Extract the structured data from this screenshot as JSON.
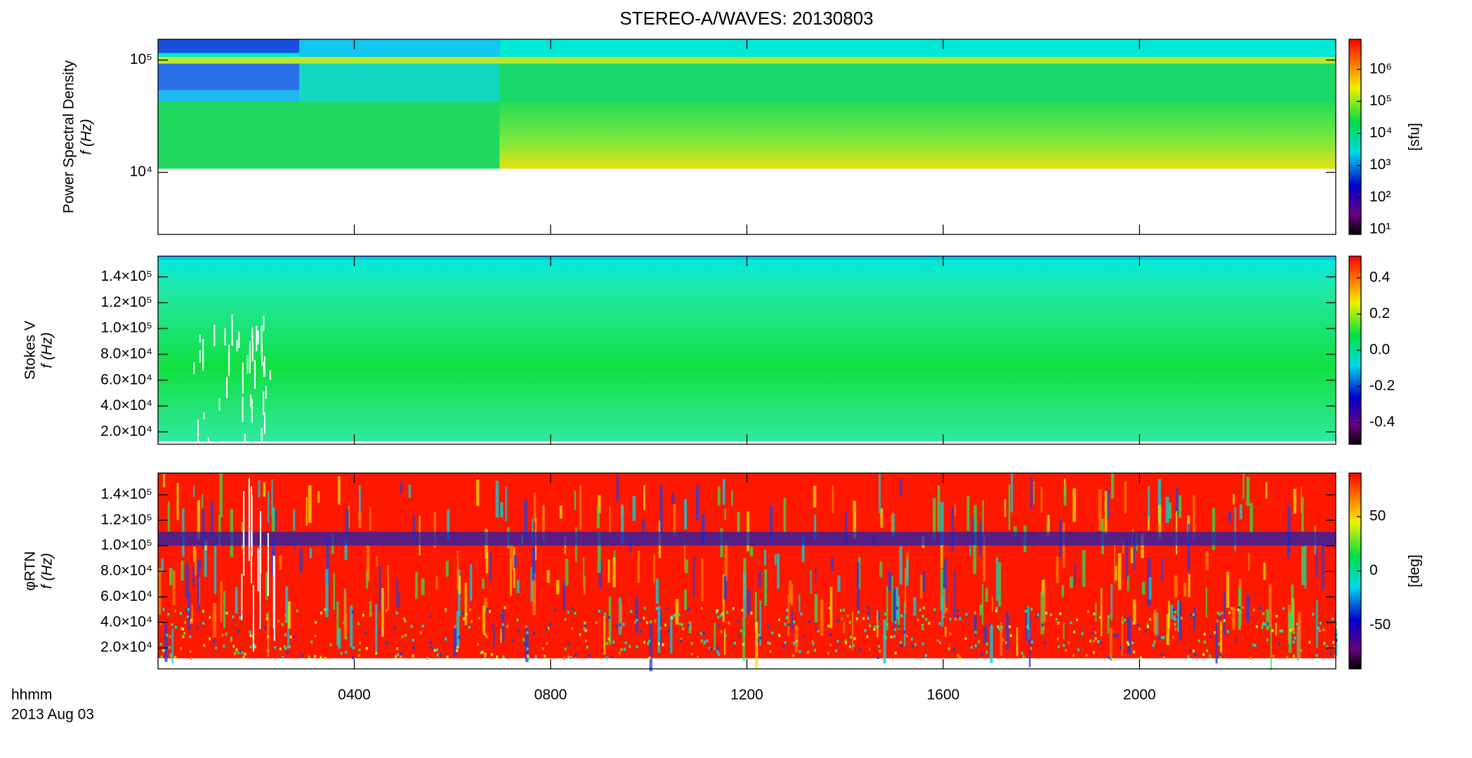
{
  "chart_data": [
    {
      "type": "spectrogram",
      "title": "STEREO-A/WAVES: 20130803",
      "ylabel": [
        "Power Spectral Density",
        "f (Hz)"
      ],
      "ylog": true,
      "ylim": [
        2800,
        153000
      ],
      "yticks": [
        {
          "value": 10000,
          "label": "10⁴"
        },
        {
          "value": 100000,
          "label": "10⁵"
        }
      ],
      "xlim": [
        0,
        24
      ],
      "xticks": [
        {
          "value": 4,
          "label": "0400"
        },
        {
          "value": 8,
          "label": "0800"
        },
        {
          "value": 12,
          "label": "1200"
        },
        {
          "value": 16,
          "label": "1600"
        },
        {
          "value": 20,
          "label": "2000"
        }
      ],
      "colorbar": {
        "log": true,
        "clim": [
          7,
          8700000
        ],
        "label": "[sfu]",
        "ticks": [
          {
            "value": 10,
            "label": "10¹"
          },
          {
            "value": 100,
            "label": "10²"
          },
          {
            "value": 1000,
            "label": "10³"
          },
          {
            "value": 10000,
            "label": "10⁴"
          },
          {
            "value": 100000,
            "label": "10⁵"
          },
          {
            "value": 1000000,
            "label": "10⁶"
          }
        ]
      }
    },
    {
      "type": "spectrogram",
      "ylabel": [
        "Stokes V",
        "f (Hz)"
      ],
      "ylog": false,
      "ylim": [
        10400,
        156000
      ],
      "yticks": [
        {
          "value": 20000,
          "label": "2.0×10⁴"
        },
        {
          "value": 40000,
          "label": "4.0×10⁴"
        },
        {
          "value": 60000,
          "label": "6.0×10⁴"
        },
        {
          "value": 80000,
          "label": "8.0×10⁴"
        },
        {
          "value": 100000,
          "label": "1.0×10⁵"
        },
        {
          "value": 120000,
          "label": "1.2×10⁵"
        },
        {
          "value": 140000,
          "label": "1.4×10⁵"
        }
      ],
      "xlim": [
        0,
        24
      ],
      "xticks": [
        {
          "value": 4,
          "label": "0400"
        },
        {
          "value": 8,
          "label": "0800"
        },
        {
          "value": 12,
          "label": "1200"
        },
        {
          "value": 16,
          "label": "1600"
        },
        {
          "value": 20,
          "label": "2000"
        }
      ],
      "colorbar": {
        "log": false,
        "clim": [
          -0.52,
          0.52
        ],
        "ticks": [
          {
            "value": -0.4,
            "label": "-0.4"
          },
          {
            "value": -0.2,
            "label": "-0.2"
          },
          {
            "value": 0,
            "label": "0.0"
          },
          {
            "value": 0.2,
            "label": "0.2"
          },
          {
            "value": 0.4,
            "label": "0.4"
          }
        ]
      }
    },
    {
      "type": "spectrogram",
      "ylabel": [
        "φRTN",
        "f (Hz)"
      ],
      "ylog": false,
      "ylim": [
        3600,
        157000
      ],
      "yticks": [
        {
          "value": 20000,
          "label": "2.0×10⁴"
        },
        {
          "value": 40000,
          "label": "4.0×10⁴"
        },
        {
          "value": 60000,
          "label": "6.0×10⁴"
        },
        {
          "value": 80000,
          "label": "8.0×10⁴"
        },
        {
          "value": 100000,
          "label": "1.0×10⁵"
        },
        {
          "value": 120000,
          "label": "1.2×10⁵"
        },
        {
          "value": 140000,
          "label": "1.4×10⁵"
        }
      ],
      "xlim": [
        0,
        24
      ],
      "xticks": [
        {
          "value": 4,
          "label": "0400"
        },
        {
          "value": 8,
          "label": "0800"
        },
        {
          "value": 12,
          "label": "1200"
        },
        {
          "value": 16,
          "label": "1600"
        },
        {
          "value": 20,
          "label": "2000"
        }
      ],
      "xlabel": [
        "hhmm",
        "2013 Aug 03"
      ],
      "colorbar": {
        "log": false,
        "clim": [
          -90,
          90
        ],
        "label": "[deg]",
        "ticks": [
          -50,
          0,
          50
        ]
      }
    }
  ]
}
